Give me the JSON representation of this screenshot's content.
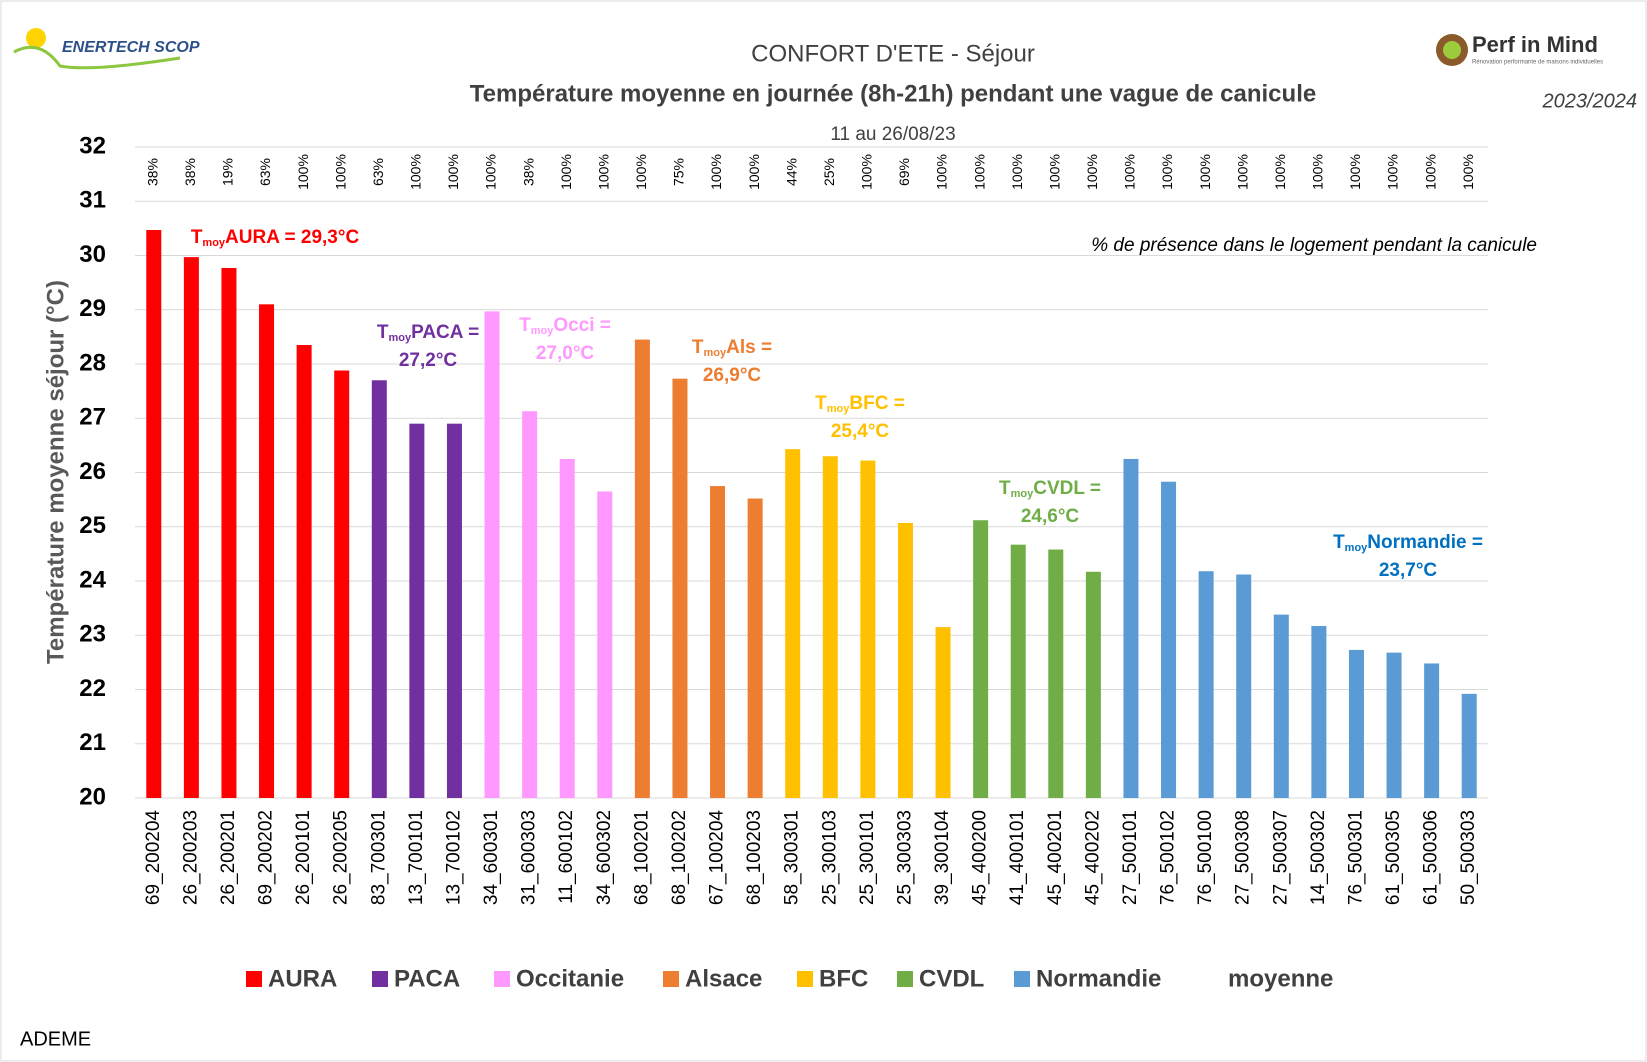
{
  "header": {
    "left_logo": "ENERTECH SCOP",
    "right_logo": "Perf in Mind",
    "right_logo_tagline": "Rénovation performante de maisons individuelles",
    "period": "2023/2024"
  },
  "footer": {
    "source": "ADEME"
  },
  "chart_data": {
    "type": "bar",
    "supertitle": "CONFORT D'ETE - Séjour",
    "title": "Température moyenne en journée (8h-21h) pendant une vague de canicule",
    "subtitle": "11 au 26/08/23",
    "y_label": "Température moyenne séjour (°C)",
    "presence_title": "% de présence dans le logement pendant la canicule",
    "categories": [
      "69_200204",
      "26_200203",
      "26_200201",
      "69_200202",
      "26_200101",
      "26_200205",
      "83_700301",
      "13_700101",
      "13_700102",
      "34_600301",
      "31_600303",
      "11_600102",
      "34_600302",
      "68_100201",
      "68_100202",
      "67_100204",
      "68_100203",
      "58_300301",
      "25_300103",
      "25_300101",
      "25_300303",
      "39_300104",
      "45_400200",
      "41_400101",
      "45_400201",
      "45_400202",
      "27_500101",
      "76_500102",
      "76_500100",
      "27_500308",
      "27_500307",
      "14_500302",
      "76_500301",
      "61_500305",
      "61_500306",
      "50_500303"
    ],
    "presence_labels": [
      "38%",
      "38%",
      "19%",
      "63%",
      "100%",
      "100%",
      "63%",
      "100%",
      "100%",
      "100%",
      "38%",
      "100%",
      "100%",
      "100%",
      "75%",
      "100%",
      "100%",
      "44%",
      "25%",
      "100%",
      "69%",
      "100%",
      "100%",
      "100%",
      "100%",
      "100%",
      "100%",
      "100%",
      "100%",
      "100%",
      "100%",
      "100%",
      "100%",
      "100%",
      "100%",
      "100%"
    ],
    "series": [
      {
        "name": "AURA",
        "color": "#ff0000",
        "values": [
          30.47,
          29.97,
          29.77,
          29.1,
          28.35,
          27.88,
          null,
          null,
          null,
          null,
          null,
          null,
          null,
          null,
          null,
          null,
          null,
          null,
          null,
          null,
          null,
          null,
          null,
          null,
          null,
          null,
          null,
          null,
          null,
          null,
          null,
          null,
          null,
          null,
          null,
          null
        ]
      },
      {
        "name": "PACA",
        "color": "#7030a0",
        "values": [
          null,
          null,
          null,
          null,
          null,
          null,
          27.7,
          26.9,
          26.9,
          null,
          null,
          null,
          null,
          null,
          null,
          null,
          null,
          null,
          null,
          null,
          null,
          null,
          null,
          null,
          null,
          null,
          null,
          null,
          null,
          null,
          null,
          null,
          null,
          null,
          null,
          null
        ]
      },
      {
        "name": "Occitanie",
        "color": "#ff99ff",
        "values": [
          null,
          null,
          null,
          null,
          null,
          null,
          null,
          null,
          null,
          28.97,
          27.13,
          26.25,
          25.65,
          null,
          null,
          null,
          null,
          null,
          null,
          null,
          null,
          null,
          null,
          null,
          null,
          null,
          null,
          null,
          null,
          null,
          null,
          null,
          null,
          null,
          null,
          null
        ]
      },
      {
        "name": "Alsace",
        "color": "#ed7d31",
        "values": [
          null,
          null,
          null,
          null,
          null,
          null,
          null,
          null,
          null,
          null,
          null,
          null,
          null,
          28.45,
          27.73,
          25.75,
          25.52,
          null,
          null,
          null,
          null,
          null,
          null,
          null,
          null,
          null,
          null,
          null,
          null,
          null,
          null,
          null,
          null,
          null,
          null,
          null
        ]
      },
      {
        "name": "BFC",
        "color": "#ffc000",
        "values": [
          null,
          null,
          null,
          null,
          null,
          null,
          null,
          null,
          null,
          null,
          null,
          null,
          null,
          null,
          null,
          null,
          null,
          26.43,
          26.3,
          26.22,
          25.07,
          23.15,
          null,
          null,
          null,
          null,
          null,
          null,
          null,
          null,
          null,
          null,
          null,
          null,
          null,
          null
        ]
      },
      {
        "name": "CVDL",
        "color": "#70ad47",
        "values": [
          null,
          null,
          null,
          null,
          null,
          null,
          null,
          null,
          null,
          null,
          null,
          null,
          null,
          null,
          null,
          null,
          null,
          null,
          null,
          null,
          null,
          null,
          25.12,
          24.67,
          24.58,
          24.17,
          null,
          null,
          null,
          null,
          null,
          null,
          null,
          null,
          null,
          null
        ]
      },
      {
        "name": "Normandie",
        "color": "#5b9bd5",
        "values": [
          null,
          null,
          null,
          null,
          null,
          null,
          null,
          null,
          null,
          null,
          null,
          null,
          null,
          null,
          null,
          null,
          null,
          null,
          null,
          null,
          null,
          null,
          null,
          null,
          null,
          null,
          26.25,
          25.83,
          24.18,
          24.12,
          23.38,
          23.17,
          22.73,
          22.68,
          22.48,
          21.92
        ]
      }
    ],
    "legend_extra": "moyenne",
    "annotations": [
      {
        "lead": "T",
        "sub": "moy",
        "lines": [
          "AURA = 29,3°C"
        ],
        "color": "#ff0000"
      },
      {
        "lead": "T",
        "sub": "moy",
        "lines": [
          "PACA =",
          "27,2°C"
        ],
        "color": "#7030a0"
      },
      {
        "lead": "T",
        "sub": "moy",
        "lines": [
          "Occi =",
          "27,0°C"
        ],
        "color": "#ff99ff"
      },
      {
        "lead": "T",
        "sub": "moy",
        "lines": [
          "Als =",
          "26,9°C"
        ],
        "color": "#ed7d31"
      },
      {
        "lead": "T",
        "sub": "moy",
        "lines": [
          "BFC =",
          "25,4°C"
        ],
        "color": "#ffc000"
      },
      {
        "lead": "T",
        "sub": "moy",
        "lines": [
          "CVDL =",
          "24,6°C"
        ],
        "color": "#70ad47"
      },
      {
        "lead": "T",
        "sub": "moy",
        "lines": [
          "Normandie =",
          "23,7°C"
        ],
        "color": "#0070c0"
      }
    ],
    "ylim": [
      20,
      32
    ],
    "yticks": [
      20,
      21,
      22,
      23,
      24,
      25,
      26,
      27,
      28,
      29,
      30,
      31,
      32
    ],
    "grid": true
  }
}
